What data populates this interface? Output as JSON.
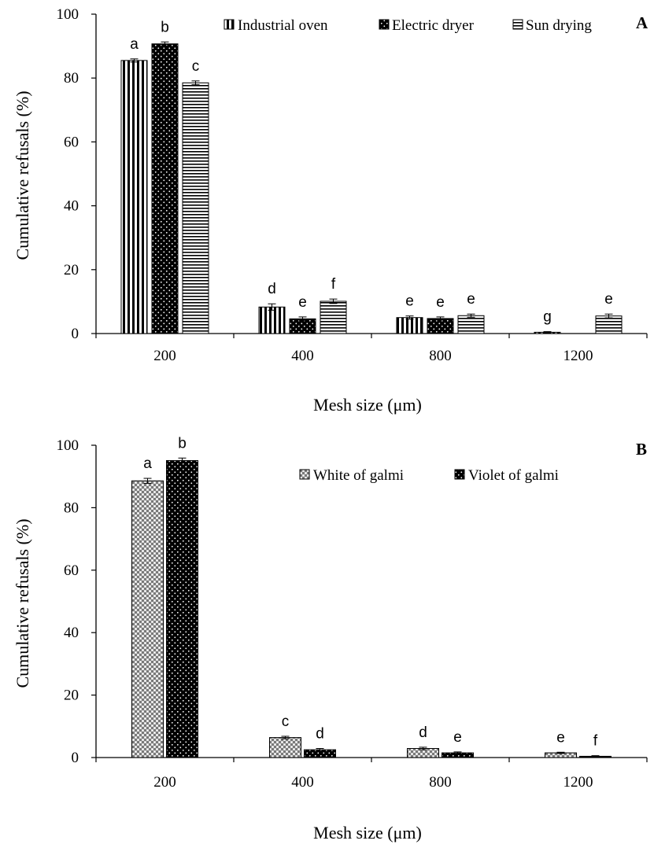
{
  "chart_data": [
    {
      "type": "bar",
      "panel_letter": "A",
      "ylabel": "Cumulative  refusals (%)",
      "xlabel": "Mesh size (μm)",
      "ylim": [
        0,
        100
      ],
      "yticks": [
        0,
        20,
        40,
        60,
        80,
        100
      ],
      "categories": [
        "200",
        "400",
        "800",
        "1200"
      ],
      "legend_position": "top-right",
      "grid": false,
      "series": [
        {
          "name": "Industrial oven",
          "pattern": "vertical-stripes",
          "values": [
            85.5,
            8.3,
            5.0,
            0.4
          ],
          "errors": [
            0.5,
            1.0,
            0.5,
            0.2
          ],
          "letters": [
            "a",
            "d",
            "e",
            "g"
          ]
        },
        {
          "name": "Electric dryer",
          "pattern": "dots-on-black",
          "values": [
            90.7,
            4.6,
            4.7,
            0.0
          ],
          "errors": [
            0.6,
            0.6,
            0.5,
            0.0
          ],
          "letters": [
            "b",
            "e",
            "e",
            ""
          ]
        },
        {
          "name": "Sun drying",
          "pattern": "horizontal-stripes",
          "values": [
            78.5,
            10.1,
            5.6,
            5.5
          ],
          "errors": [
            0.6,
            0.7,
            0.5,
            0.6
          ],
          "letters": [
            "c",
            "f",
            "e",
            "e"
          ]
        }
      ]
    },
    {
      "type": "bar",
      "panel_letter": "B",
      "ylabel": "Cumulative  refusals (%)",
      "xlabel": "Mesh size (μm)",
      "ylim": [
        0,
        100
      ],
      "yticks": [
        0,
        20,
        40,
        60,
        80,
        100
      ],
      "categories": [
        "200",
        "400",
        "800",
        "1200"
      ],
      "legend_position": "top-right",
      "grid": false,
      "series": [
        {
          "name": "White of galmi",
          "pattern": "checker-gray",
          "values": [
            88.6,
            6.4,
            2.9,
            1.5
          ],
          "errors": [
            0.8,
            0.4,
            0.4,
            0.2
          ],
          "letters": [
            "a",
            "c",
            "d",
            "e"
          ]
        },
        {
          "name": "Violet of galmi",
          "pattern": "dots-on-black",
          "values": [
            95.1,
            2.5,
            1.5,
            0.4
          ],
          "errors": [
            0.8,
            0.4,
            0.3,
            0.2
          ],
          "letters": [
            "b",
            "d",
            "e",
            "f"
          ]
        }
      ]
    }
  ]
}
